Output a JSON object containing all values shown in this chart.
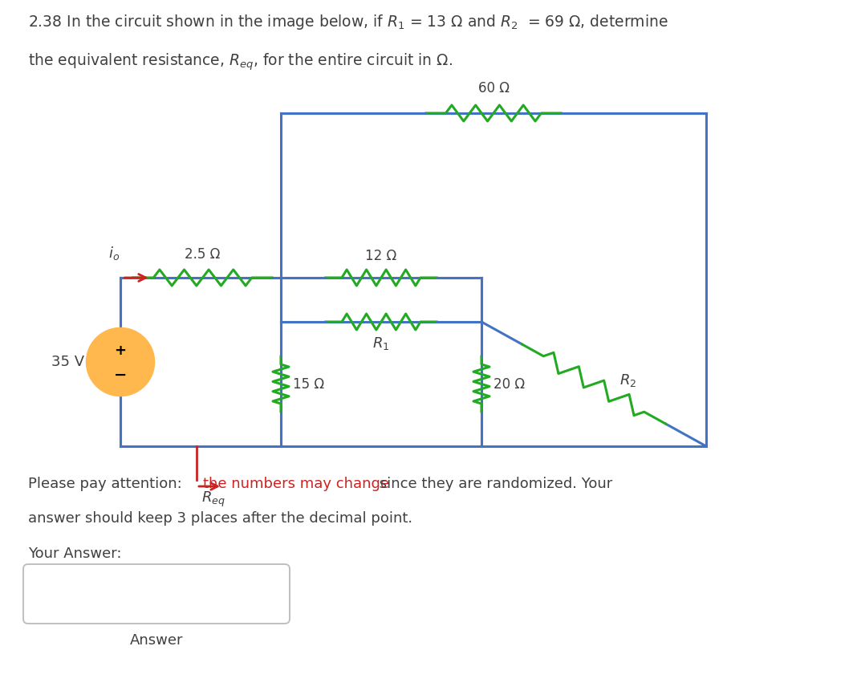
{
  "wire_color": "#4472C4",
  "resistor_color": "#22AA22",
  "source_fill": "#FFB84D",
  "source_edge": "#CC8800",
  "arrow_color": "#CC2222",
  "req_color": "#CC2222",
  "text_color": "#404040",
  "red_color": "#CC2222",
  "r60": "60 Ω",
  "r12": "12 Ω",
  "r25": "2.5 Ω",
  "r15": "15 Ω",
  "r20": "20 Ω",
  "v35": "35 V",
  "bg_color": "#FFFFFF",
  "title1": "2.38 In the circuit shown in the image below, if $R_1$ = 13 $\\Omega$ and $R_2$  = 69 $\\Omega$, determine",
  "title2": "the equivalent resistance, $R_{eq}$, for the entire circuit in $\\Omega$.",
  "note_pre": "Please pay attention: ",
  "note_red": "the numbers may change",
  "note_post": " since they are randomized. Your",
  "note2": "answer should keep 3 places after the decimal point.",
  "your_answer": "Your Answer:",
  "answer_btn": "Answer"
}
